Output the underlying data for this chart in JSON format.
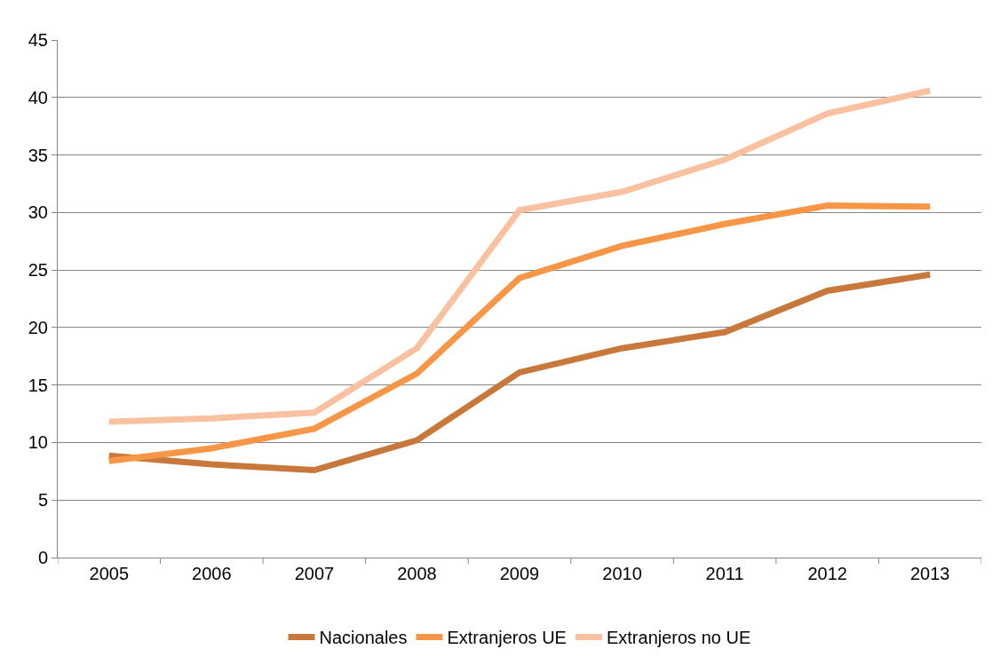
{
  "chart_data": {
    "type": "line",
    "categories": [
      "2005",
      "2006",
      "2007",
      "2008",
      "2009",
      "2010",
      "2011",
      "2012",
      "2013"
    ],
    "series": [
      {
        "name": "Nacionales",
        "color": "#c8783a",
        "values": [
          8.85,
          8.1,
          7.6,
          10.2,
          16.1,
          18.2,
          19.6,
          23.2,
          24.6
        ]
      },
      {
        "name": "Extranjeros UE",
        "color": "#f79646",
        "values": [
          8.4,
          9.5,
          11.2,
          16.0,
          24.3,
          27.1,
          29.0,
          30.6,
          30.5
        ]
      },
      {
        "name": "Extranjeros no UE",
        "color": "#f9c1a0",
        "values": [
          11.8,
          12.1,
          12.6,
          18.2,
          30.2,
          31.8,
          34.6,
          38.6,
          40.6
        ]
      }
    ],
    "ylim": [
      0,
      45
    ],
    "yticks": [
      0,
      5,
      10,
      15,
      20,
      25,
      30,
      35,
      40,
      45
    ],
    "grid": "y",
    "legend": "bottom",
    "marker": "none",
    "line_style": "solid"
  }
}
